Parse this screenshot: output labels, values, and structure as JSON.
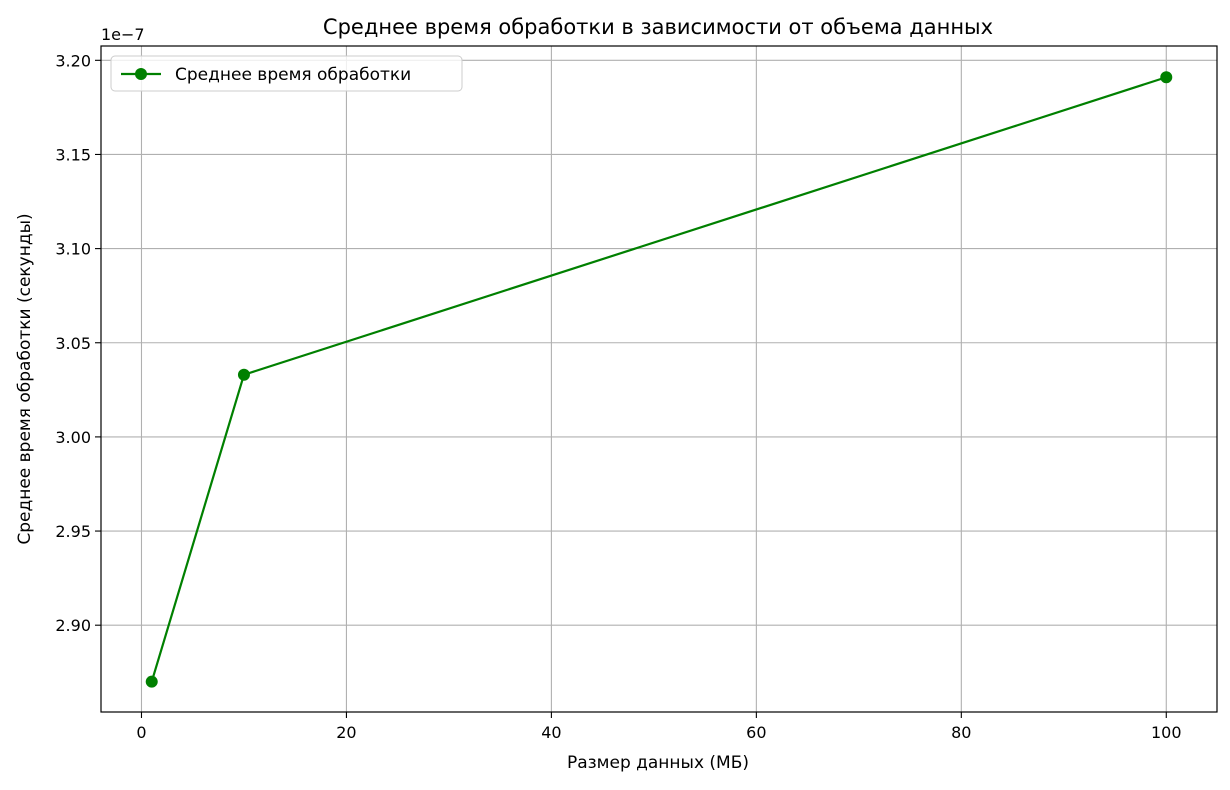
{
  "chart_data": {
    "type": "line",
    "title": "Среднее время обработки в зависимости от объема данных",
    "xlabel": "Размер данных (МБ)",
    "ylabel": "Среднее время обработки (секунды)",
    "y_offset_text": "1e−7",
    "y_scale_factor": 1e-07,
    "xlim": [
      -3.95,
      104.95
    ],
    "ylim": [
      2.8539,
      3.2076
    ],
    "x_ticks": [
      0,
      20,
      40,
      60,
      80,
      100
    ],
    "x_tick_labels": [
      "0",
      "20",
      "40",
      "60",
      "80",
      "100"
    ],
    "y_ticks": [
      2.9,
      2.95,
      3.0,
      3.05,
      3.1,
      3.15,
      3.2
    ],
    "y_tick_labels": [
      "2.90",
      "2.95",
      "3.00",
      "3.05",
      "3.10",
      "3.15",
      "3.20"
    ],
    "grid": true,
    "legend_position": "top-left",
    "series": [
      {
        "name": "Среднее время обработки",
        "color": "#008000",
        "marker": "circle",
        "x": [
          1,
          10,
          100
        ],
        "y": [
          2.87,
          3.033,
          3.191
        ]
      }
    ]
  }
}
